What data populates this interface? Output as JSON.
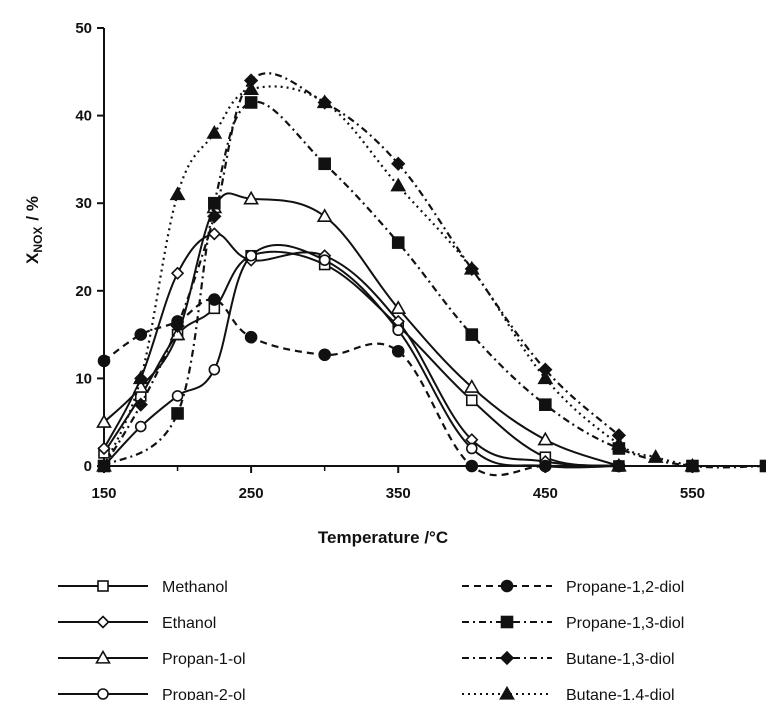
{
  "chart_data": {
    "type": "line",
    "xlabel": "Temperature /°C",
    "ylabel_main": "X",
    "ylabel_sub": "NOX",
    "ylabel_unit": "/ %",
    "xlim": [
      150,
      600
    ],
    "ylim": [
      0,
      50
    ],
    "xticks": [
      150,
      250,
      350,
      450,
      550
    ],
    "yticks": [
      0,
      10,
      20,
      30,
      40,
      50
    ],
    "grid": false,
    "legend_placement": "bottom",
    "series": [
      {
        "name": "Methanol",
        "marker": "square-open",
        "dash": "solid",
        "x": [
          150,
          175,
          200,
          225,
          250,
          300,
          350,
          400,
          450,
          500
        ],
        "y": [
          1.5,
          8,
          15,
          18,
          24,
          23,
          16,
          7.5,
          1,
          0
        ]
      },
      {
        "name": "Ethanol",
        "marker": "diamond-open",
        "dash": "solid",
        "x": [
          150,
          175,
          200,
          225,
          250,
          300,
          350,
          400,
          450,
          500
        ],
        "y": [
          2,
          10,
          22,
          26.5,
          23.5,
          24,
          16.5,
          3,
          0.5,
          0
        ]
      },
      {
        "name": "Propan-1-ol",
        "marker": "triangle-open",
        "dash": "solid",
        "x": [
          150,
          175,
          200,
          225,
          250,
          300,
          350,
          400,
          450,
          500
        ],
        "y": [
          5,
          9,
          15,
          29.5,
          30.5,
          28.5,
          18,
          9,
          3,
          0
        ]
      },
      {
        "name": "Propan-2-ol",
        "marker": "circle-open",
        "dash": "solid",
        "x": [
          150,
          175,
          200,
          225,
          250,
          300,
          350,
          400,
          450,
          500
        ],
        "y": [
          0,
          4.5,
          8,
          11,
          24,
          23.5,
          15.5,
          2,
          0,
          0
        ]
      },
      {
        "name": "Propane-1,2-diol",
        "marker": "circle-filled",
        "dash": "dashed",
        "x": [
          150,
          175,
          200,
          225,
          250,
          300,
          350,
          400,
          450,
          500
        ],
        "y": [
          12,
          15,
          16.5,
          19,
          14.7,
          12.7,
          13.1,
          0,
          0,
          0
        ]
      },
      {
        "name": "Propane-1,3-diol",
        "marker": "square-filled",
        "dash": "dash-dot",
        "x": [
          150,
          200,
          225,
          250,
          300,
          350,
          400,
          450,
          500,
          550,
          600
        ],
        "y": [
          0,
          6,
          30,
          41.5,
          34.5,
          25.5,
          15,
          7,
          2,
          0,
          0
        ]
      },
      {
        "name": "Butane-1,3-diol",
        "marker": "diamond-filled",
        "dash": "dash-dot",
        "x": [
          150,
          175,
          200,
          225,
          250,
          300,
          350,
          400,
          450,
          500
        ],
        "y": [
          0,
          7,
          16,
          28.5,
          44,
          41.5,
          34.5,
          22.5,
          11,
          3.5
        ]
      },
      {
        "name": "Butane-1,4-diol",
        "marker": "triangle-filled",
        "dash": "dotted",
        "x": [
          150,
          175,
          200,
          225,
          250,
          300,
          350,
          400,
          450,
          500,
          525,
          550
        ],
        "y": [
          0,
          10,
          31,
          38,
          43,
          41.5,
          32,
          22.5,
          10,
          2.5,
          1,
          0
        ]
      }
    ]
  }
}
